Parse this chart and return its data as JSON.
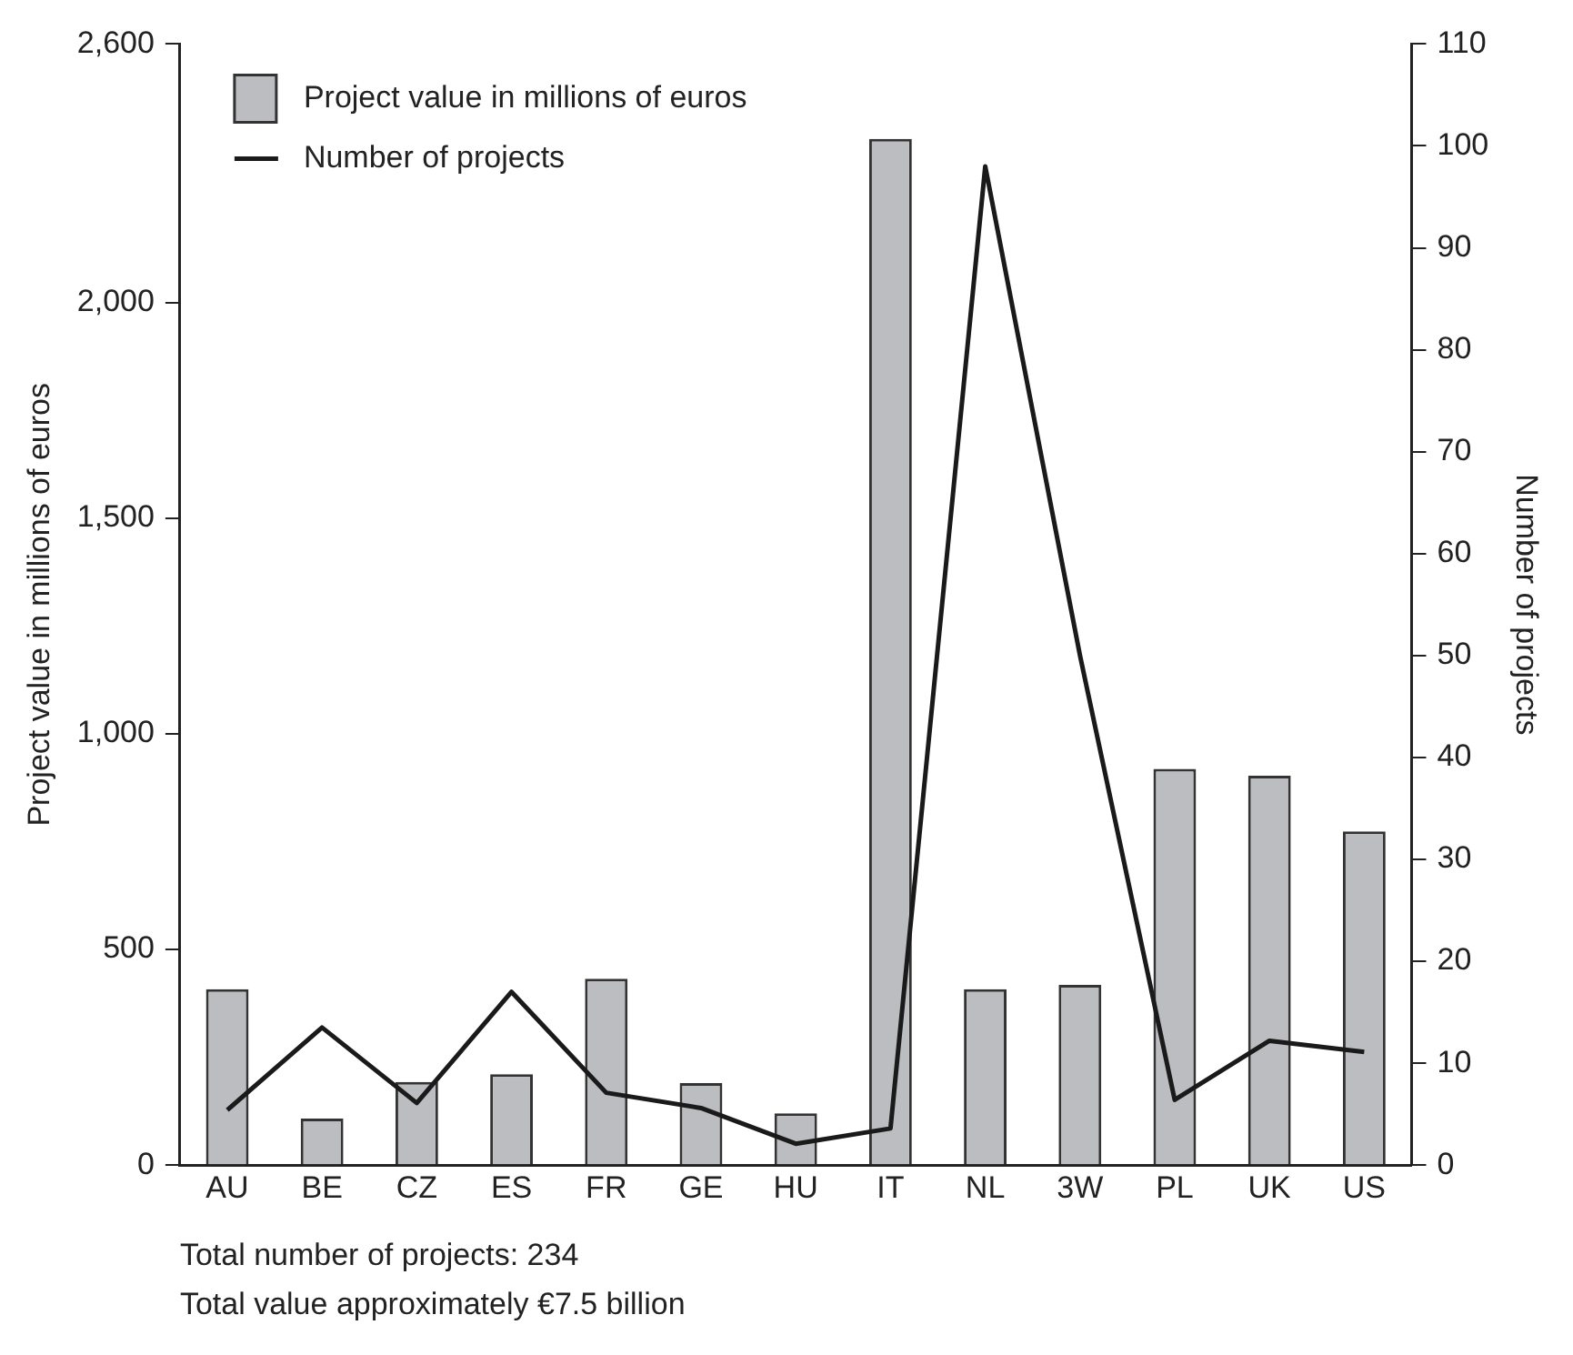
{
  "chart_data": {
    "type": "bar",
    "categories": [
      "AU",
      "BE",
      "CZ",
      "ES",
      "FR",
      "GE",
      "HU",
      "IT",
      "NL",
      "3W",
      "PL",
      "UK",
      "US"
    ],
    "series": [
      {
        "name": "Project value in millions of euros",
        "color": "#bcbdc0",
        "values": [
          408,
          108,
          193,
          211,
          432,
          190,
          120,
          2380,
          408,
          418,
          919,
          903,
          774
        ]
      },
      {
        "name": "Number of projects",
        "type": "line",
        "axis": "y2",
        "color": "#1a1a1a",
        "values": [
          5.4,
          13.5,
          6.1,
          17,
          7.1,
          5.6,
          2.1,
          3.6,
          98,
          50,
          6.4,
          12.2,
          11.1
        ]
      }
    ],
    "ylabel": "Project value in millions of euros",
    "y2label": "Number of projects",
    "ylim": [
      0,
      2600
    ],
    "yticks": [
      0,
      {
        "value": 500,
        "label": "500"
      },
      {
        "value": 1000,
        "label": "1,000"
      },
      {
        "value": 1500,
        "label": "1,500"
      },
      {
        "value": 2000,
        "label": "2,000"
      },
      {
        "value": 2600,
        "label": "2,600"
      }
    ],
    "y2lim": [
      0,
      110
    ],
    "y2ticks": [
      0,
      10,
      20,
      30,
      40,
      50,
      60,
      70,
      80,
      90,
      100,
      110
    ],
    "grid": false,
    "legend": "top left",
    "marker": "none",
    "annotations": [
      "Total number of projects: 234",
      "Total value approximately €7.5 billion"
    ]
  }
}
